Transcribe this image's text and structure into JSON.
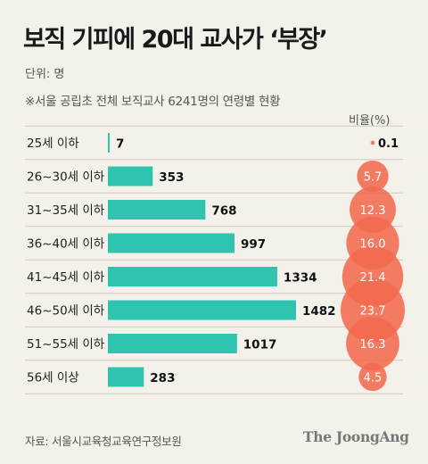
{
  "title": "보직 기피에 20대 교사가 ‘부장’",
  "unit_label": "단위: 명",
  "subtitle": "※서울 공립초 전체 보직교사 6241명의 연령별 현황",
  "percent_header": "비율(%)",
  "source": "자료: 서울시교육청교육연구정보원",
  "brand": "The JoongAng",
  "colors": {
    "bar": "#2ec4b0",
    "bubble": "#f26a4f",
    "background": "#f4f1ea",
    "divider": "#cfcac0"
  },
  "chart_data": {
    "type": "bar",
    "orientation": "horizontal",
    "categories": [
      "25세 이하",
      "26~30세 이하",
      "31~35세 이하",
      "36~40세 이하",
      "41~45세 이하",
      "46~50세 이하",
      "51~55세 이하",
      "56세 이상"
    ],
    "values": [
      7,
      353,
      768,
      997,
      1334,
      1482,
      1017,
      283
    ],
    "percent": [
      0.1,
      5.7,
      12.3,
      16.0,
      21.4,
      23.7,
      16.3,
      4.5
    ],
    "percent_labels": [
      "0.1",
      "5.7",
      "12.3",
      "16.0",
      "21.4",
      "23.7",
      "16.3",
      "4.5"
    ],
    "value_unit": "명",
    "percent_unit": "%"
  }
}
